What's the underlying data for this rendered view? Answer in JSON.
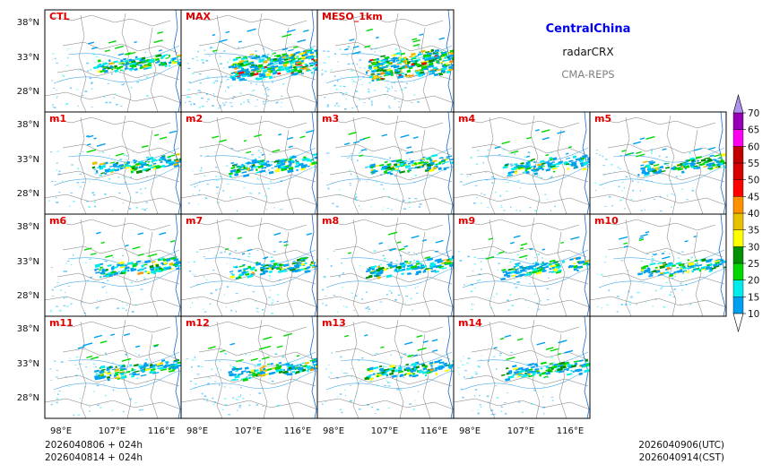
{
  "header": {
    "region": "CentralChina",
    "variable": "radarCRX",
    "system": "CMA-REPS"
  },
  "panels": [
    {
      "label": "CTL"
    },
    {
      "label": "MAX"
    },
    {
      "label": "MESO_1km"
    },
    {
      "label": "m1"
    },
    {
      "label": "m2"
    },
    {
      "label": "m3"
    },
    {
      "label": "m4"
    },
    {
      "label": "m5"
    },
    {
      "label": "m6"
    },
    {
      "label": "m7"
    },
    {
      "label": "m8"
    },
    {
      "label": "m9"
    },
    {
      "label": "m10"
    },
    {
      "label": "m11"
    },
    {
      "label": "m12"
    },
    {
      "label": "m13"
    },
    {
      "label": "m14"
    }
  ],
  "axes": {
    "lat_ticks": [
      "38°N",
      "33°N",
      "28°N"
    ],
    "lon_ticks": [
      "98°E",
      "107°E",
      "116°E"
    ]
  },
  "colorbar": {
    "levels": [
      "10",
      "15",
      "20",
      "25",
      "30",
      "35",
      "40",
      "45",
      "50",
      "55",
      "60",
      "65",
      "70"
    ],
    "colors": [
      "#00a0f0",
      "#00ecec",
      "#00d800",
      "#009000",
      "#ffff00",
      "#e7c000",
      "#ff9000",
      "#ff0000",
      "#d60000",
      "#c00000",
      "#ff00f0",
      "#9600b4",
      "#ad90f0"
    ],
    "over_color": "#ad90f0",
    "under_color": "#ffffff"
  },
  "footer": {
    "init_utc": "2026040806  +  024h",
    "init_cst": "2026040814  +  024h",
    "valid_utc": "2026040906(UTC)",
    "valid_cst": "2026040914(CST)"
  }
}
